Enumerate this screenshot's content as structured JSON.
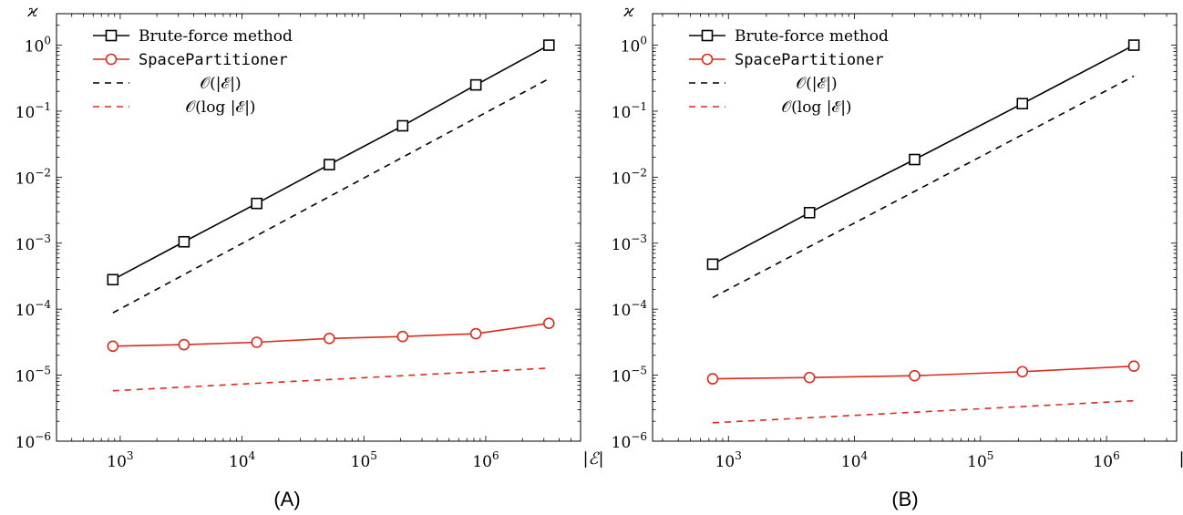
{
  "chart_data": [
    {
      "type": "line",
      "caption": "(A)",
      "xscale": "log",
      "yscale": "log",
      "xlabel": "|ℰ|",
      "ylabel": "ϰ",
      "xlim": [
        300,
        6000000
      ],
      "ylim": [
        1e-06,
        3
      ],
      "x_ticks": [
        "10^3",
        "10^4",
        "10^5",
        "10^6"
      ],
      "y_ticks": [
        "10^-6",
        "10^-5",
        "10^-4",
        "10^-3",
        "10^-2",
        "10^-1",
        "10^0"
      ],
      "legend_position": "top-left",
      "series": [
        {
          "name": "Brute-force method",
          "color": "#000000",
          "style": "solid",
          "marker": "square",
          "x": [
            870,
            3340,
            13200,
            52000,
            208000,
            830000,
            3300000
          ],
          "y": [
            0.00028,
            0.00105,
            0.004,
            0.0155,
            0.06,
            0.25,
            1.0
          ]
        },
        {
          "name": "SpacePartitioner",
          "color": "#d92b1e",
          "style": "solid",
          "marker": "circle",
          "x": [
            870,
            3340,
            13200,
            52000,
            208000,
            830000,
            3300000
          ],
          "y": [
            2.75e-05,
            2.9e-05,
            3.15e-05,
            3.6e-05,
            3.85e-05,
            4.25e-05,
            6.1e-05
          ]
        },
        {
          "name": "𝒪(|ℰ|)",
          "color": "#000000",
          "style": "dashed",
          "marker": "none",
          "x": [
            870,
            3300000
          ],
          "y": [
            8.8e-05,
            0.31
          ]
        },
        {
          "name": "𝒪(log |ℰ|)",
          "color": "#d92b1e",
          "style": "dashed",
          "marker": "none",
          "x": [
            870,
            3300000
          ],
          "y": [
            5.8e-06,
            1.28e-05
          ]
        }
      ]
    },
    {
      "type": "line",
      "caption": "(B)",
      "xscale": "log",
      "yscale": "log",
      "xlabel": "|ℰ|",
      "ylabel": "ϰ",
      "xlim": [
        250,
        3600000
      ],
      "ylim": [
        1e-06,
        3
      ],
      "x_ticks": [
        "10^3",
        "10^4",
        "10^5",
        "10^6"
      ],
      "y_ticks": [
        "10^-6",
        "10^-5",
        "10^-4",
        "10^-3",
        "10^-2",
        "10^-1",
        "10^0"
      ],
      "legend_position": "top-left",
      "series": [
        {
          "name": "Brute-force method",
          "color": "#000000",
          "style": "solid",
          "marker": "square",
          "x": [
            750,
            4400,
            30000,
            215000,
            1650000
          ],
          "y": [
            0.00048,
            0.0029,
            0.0185,
            0.13,
            1.0
          ]
        },
        {
          "name": "SpacePartitioner",
          "color": "#d92b1e",
          "style": "solid",
          "marker": "circle",
          "x": [
            750,
            4400,
            30000,
            215000,
            1650000
          ],
          "y": [
            8.8e-06,
            9.2e-06,
            9.8e-06,
            1.13e-05,
            1.37e-05
          ]
        },
        {
          "name": "𝒪(|ℰ|)",
          "color": "#000000",
          "style": "dashed",
          "marker": "none",
          "x": [
            750,
            1650000
          ],
          "y": [
            0.00015,
            0.34
          ]
        },
        {
          "name": "𝒪(log |ℰ|)",
          "color": "#d92b1e",
          "style": "dashed",
          "marker": "none",
          "x": [
            750,
            1650000
          ],
          "y": [
            1.9e-06,
            4.1e-06
          ]
        }
      ]
    }
  ]
}
